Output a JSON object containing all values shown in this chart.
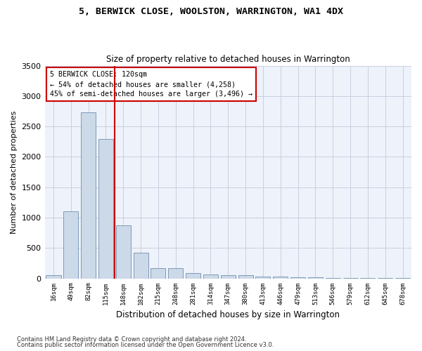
{
  "title": "5, BERWICK CLOSE, WOOLSTON, WARRINGTON, WA1 4DX",
  "subtitle": "Size of property relative to detached houses in Warrington",
  "xlabel": "Distribution of detached houses by size in Warrington",
  "ylabel": "Number of detached properties",
  "categories": [
    "16sqm",
    "49sqm",
    "82sqm",
    "115sqm",
    "148sqm",
    "182sqm",
    "215sqm",
    "248sqm",
    "281sqm",
    "314sqm",
    "347sqm",
    "380sqm",
    "413sqm",
    "446sqm",
    "479sqm",
    "513sqm",
    "546sqm",
    "579sqm",
    "612sqm",
    "645sqm",
    "678sqm"
  ],
  "values": [
    50,
    1100,
    2730,
    2290,
    870,
    420,
    170,
    165,
    90,
    60,
    50,
    50,
    35,
    25,
    20,
    15,
    10,
    8,
    5,
    3,
    2
  ],
  "bar_color": "#ccd9e8",
  "bar_edge_color": "#7090b0",
  "vline_index": 3,
  "vline_color": "#cc0000",
  "annotation_title": "5 BERWICK CLOSE: 120sqm",
  "annotation_line1": "← 54% of detached houses are smaller (4,258)",
  "annotation_line2": "45% of semi-detached houses are larger (3,496) →",
  "annotation_box_color": "#cc0000",
  "ylim": [
    0,
    3500
  ],
  "yticks": [
    0,
    500,
    1000,
    1500,
    2000,
    2500,
    3000,
    3500
  ],
  "bg_color": "#eef2fa",
  "grid_color": "#c8cfe0",
  "footer1": "Contains HM Land Registry data © Crown copyright and database right 2024.",
  "footer2": "Contains public sector information licensed under the Open Government Licence v3.0."
}
